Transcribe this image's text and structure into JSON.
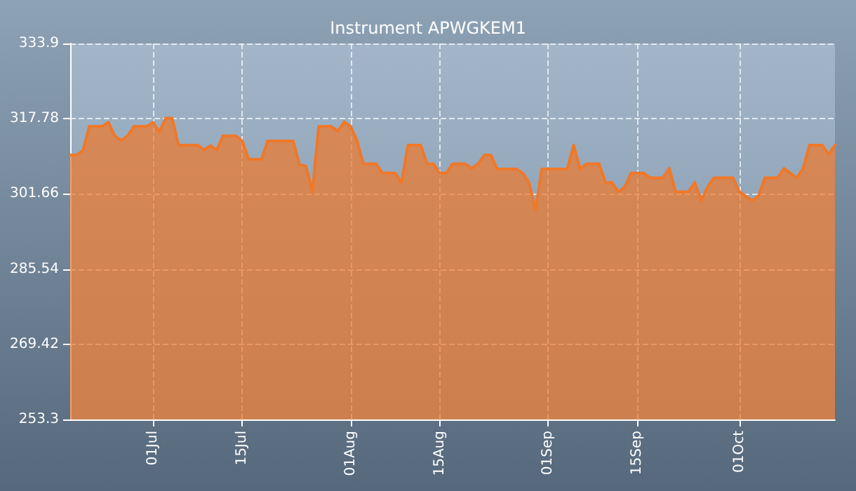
{
  "chart_data": {
    "type": "area",
    "title": "Instrument APWGKEM1",
    "x": [
      "--06-18",
      "--06-19",
      "--06-20",
      "--06-21",
      "--06-23",
      "--06-24",
      "--06-25",
      "--06-26",
      "--06-27",
      "--06-28",
      "--06-30",
      "--07-01",
      "--07-02",
      "--07-03",
      "--07-04",
      "--07-05",
      "--07-08",
      "--07-09",
      "--07-10",
      "--07-11",
      "--07-12",
      "--07-14",
      "--07-15",
      "--07-16",
      "--07-18",
      "--07-19",
      "--07-23",
      "--07-24",
      "--07-25",
      "--07-26",
      "--07-27",
      "--07-29",
      "--07-30",
      "--07-31",
      "--08-01",
      "--08-02",
      "--08-03",
      "--08-05",
      "--08-06",
      "--08-08",
      "--08-09",
      "--08-10",
      "--08-12",
      "--08-13",
      "--08-14",
      "--08-15",
      "--08-16",
      "--08-17",
      "--08-19",
      "--08-20",
      "--08-21",
      "--08-22",
      "--08-23",
      "--08-24",
      "--08-27",
      "--08-28",
      "--08-29",
      "--08-30",
      "--08-31",
      "--09-04",
      "--09-05",
      "--09-06",
      "--09-07",
      "--09-09",
      "--09-10",
      "--09-11",
      "--09-12",
      "--09-13",
      "--09-14",
      "--09-16",
      "--09-17",
      "--09-19",
      "--09-20",
      "--09-21",
      "--09-23",
      "--09-24",
      "--09-25",
      "--09-26",
      "--09-27",
      "--09-30",
      "--10-01",
      "--10-02",
      "--10-03",
      "--10-04",
      "--10-05",
      "--10-07",
      "--10-08",
      "--10-09",
      "--10-10",
      "--10-11",
      "--10-12",
      "--10-14",
      "--10-15",
      "--10-16"
    ],
    "series": [
      {
        "color": "#f07828",
        "values": [
          310.0,
          310.0,
          310.9,
          316.1,
          316.1,
          317.0,
          314.1,
          313.1,
          314.1,
          316.1,
          316.1,
          317.0,
          314.9,
          317.9,
          317.9,
          312.1,
          312.1,
          311.1,
          312.0,
          311.1,
          314.1,
          314.1,
          313.0,
          309.1,
          309.1,
          313.0,
          313.0,
          307.9,
          307.6,
          302.1,
          316.1,
          316.1,
          315.1,
          317.1,
          316.1,
          313.1,
          308.1,
          308.1,
          306.1,
          306.1,
          304.1,
          312.1,
          312.1,
          308.1,
          308.1,
          306.1,
          306.1,
          308.1,
          308.1,
          307.1,
          308.1,
          310.0,
          310.0,
          307.0,
          307.0,
          306.1,
          304.1,
          298.2,
          307.0,
          307.0,
          312.1,
          307.0,
          308.1,
          308.1,
          304.1,
          304.1,
          302.1,
          303.1,
          306.1,
          306.1,
          305.1,
          305.1,
          307.1,
          302.1,
          302.1,
          304.1,
          300.2,
          303.1,
          305.1,
          305.1,
          302.1,
          301.2,
          300.2,
          301.2,
          305.1,
          305.1,
          307.1,
          306.1,
          305.1,
          307.1,
          312.1,
          312.1,
          310.1,
          312.1
        ]
      }
    ],
    "xlim": [
      "--06-18",
      "--10-16"
    ],
    "xticks": [
      {
        "value": "--07-01",
        "label": "01Jul"
      },
      {
        "value": "--07-15",
        "label": "15Jul"
      },
      {
        "value": "--08-01",
        "label": "01Aug"
      },
      {
        "value": "--08-15",
        "label": "15Aug"
      },
      {
        "value": "--09-01",
        "label": "01Sep"
      },
      {
        "value": "--09-15",
        "label": "15Sep"
      },
      {
        "value": "--10-01",
        "label": "01Oct"
      }
    ],
    "ylim": [
      253.3,
      333.9
    ],
    "yticks": [
      253.3,
      269.42,
      285.54,
      301.66,
      317.78,
      333.9
    ],
    "grid": true,
    "marker": "none",
    "line_style": "solid"
  }
}
